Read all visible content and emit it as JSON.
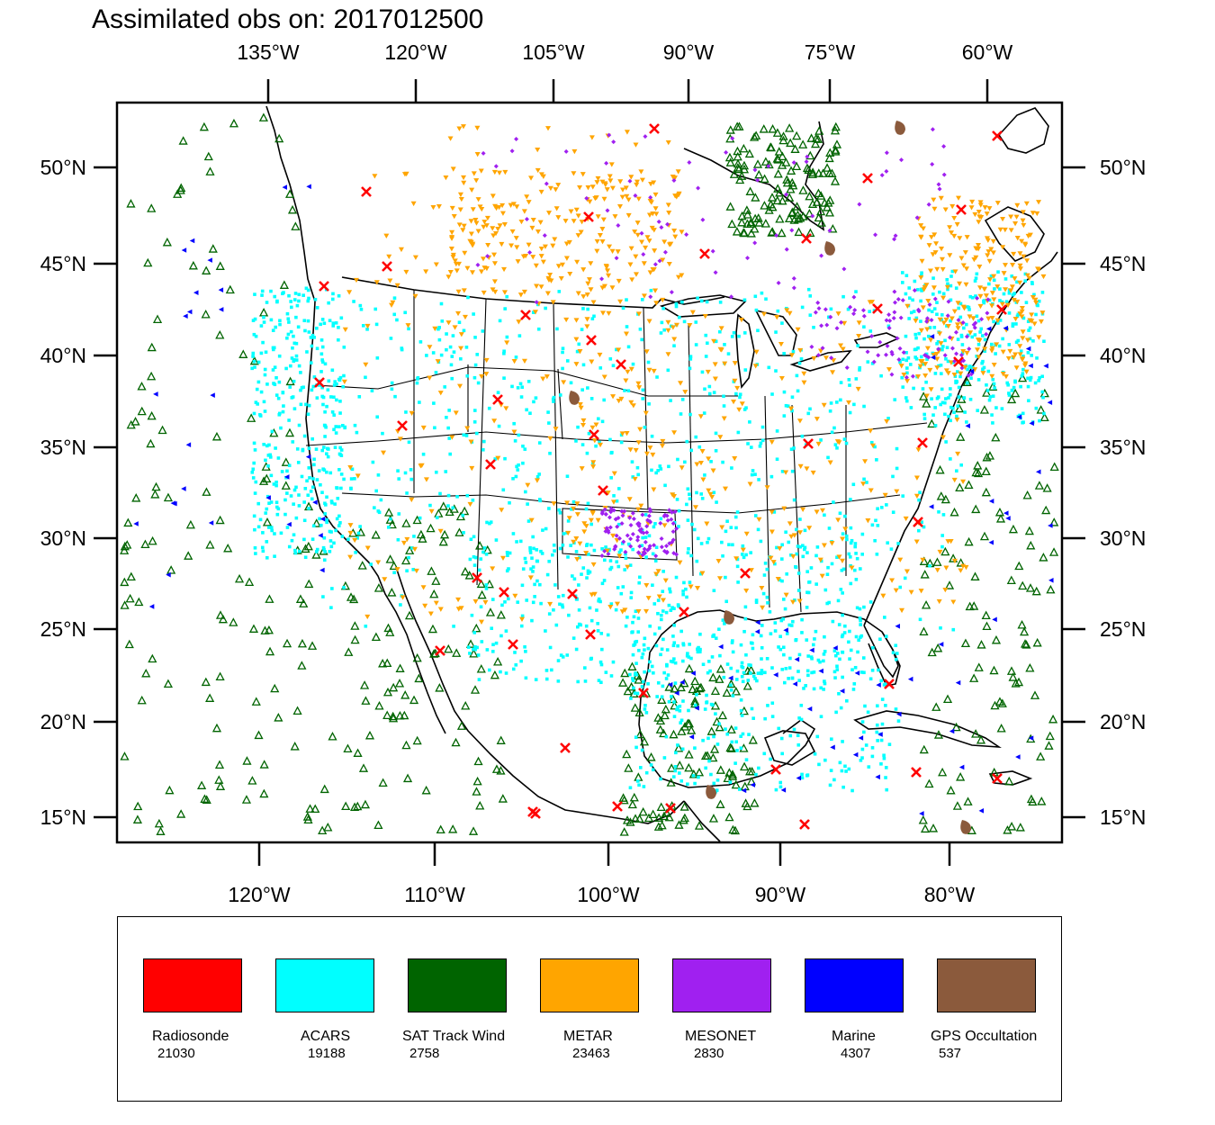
{
  "title": "Assimilated obs on: 2017012500",
  "map": {
    "projection": "Lambert conformal, conterminous US and surrounding oceans",
    "top_longitude_labels": [
      "135°W",
      "120°W",
      "105°W",
      "90°W",
      "75°W",
      "60°W"
    ],
    "bottom_longitude_labels": [
      "120°W",
      "110°W",
      "100°W",
      "90°W",
      "80°W"
    ],
    "latitude_labels": [
      "50°N",
      "45°N",
      "40°N",
      "35°N",
      "30°N",
      "25°N",
      "20°N",
      "15°N"
    ],
    "background_color": "#ffffff",
    "coastline_color": "#000000"
  },
  "legend": {
    "items": [
      {
        "name": "Radiosonde",
        "count": "21030",
        "color": "#ff0000",
        "marker": "x"
      },
      {
        "name": "ACARS",
        "count": "19188",
        "color": "#00ffff",
        "marker": "square"
      },
      {
        "name": "SAT Track Wind",
        "count": "2758",
        "color": "#006400",
        "marker": "triangle-up"
      },
      {
        "name": "METAR",
        "count": "23463",
        "color": "#ffa500",
        "marker": "triangle-down"
      },
      {
        "name": "MESONET",
        "count": "2830",
        "color": "#a020f0",
        "marker": "diamond"
      },
      {
        "name": "Marine",
        "count": "4307",
        "color": "#0000ff",
        "marker": "triangle-left"
      },
      {
        "name": "GPS Occultation",
        "count": "537",
        "color": "#8b5a3c",
        "marker": "blob"
      }
    ]
  }
}
